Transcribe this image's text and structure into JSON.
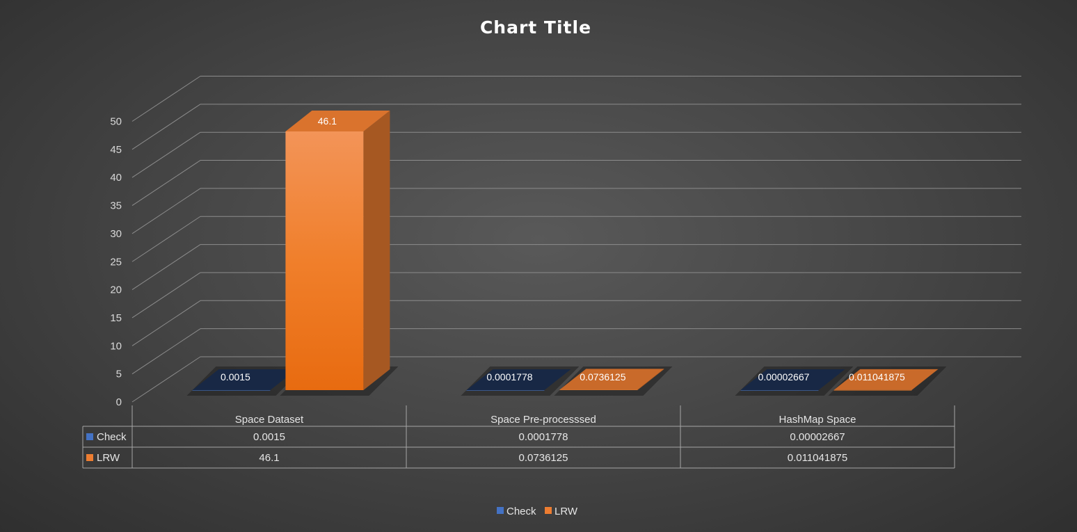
{
  "chart_data": {
    "type": "bar",
    "variant": "3d-clustered-column-with-data-table",
    "title": "Chart  Title",
    "xlabel": "",
    "ylabel": "",
    "ylim": [
      0,
      50
    ],
    "yticks": [
      0,
      5,
      10,
      15,
      20,
      25,
      30,
      35,
      40,
      45,
      50
    ],
    "ytick_labels": [
      "0",
      "5",
      "10",
      "15",
      "20",
      "25",
      "30",
      "35",
      "40",
      "45",
      "50"
    ],
    "grid": true,
    "legend_position": "bottom",
    "categories": [
      "Space Dataset",
      "Space Pre-processsed",
      "HashMap Space"
    ],
    "series": [
      {
        "name": "Check",
        "color": "#4472c4",
        "values": [
          0.0015,
          0.0001778,
          2.667e-05
        ],
        "labels": [
          "0.0015",
          "0.0001778",
          "0.00002667"
        ]
      },
      {
        "name": "LRW",
        "color": "#ed7d31",
        "values": [
          46.1,
          0.0736125,
          0.011041875
        ],
        "labels": [
          "46.1",
          "0.0736125",
          "0.011041875"
        ]
      }
    ],
    "data_table": {
      "columns": [
        "Space Dataset",
        "Space Pre-processsed",
        "HashMap Space"
      ],
      "rows": [
        {
          "name": "Check",
          "values": [
            "0.0015",
            "0.0001778",
            "0.00002667"
          ]
        },
        {
          "name": "LRW",
          "values": [
            "46.1",
            "0.0736125",
            "0.011041875"
          ]
        }
      ]
    }
  }
}
